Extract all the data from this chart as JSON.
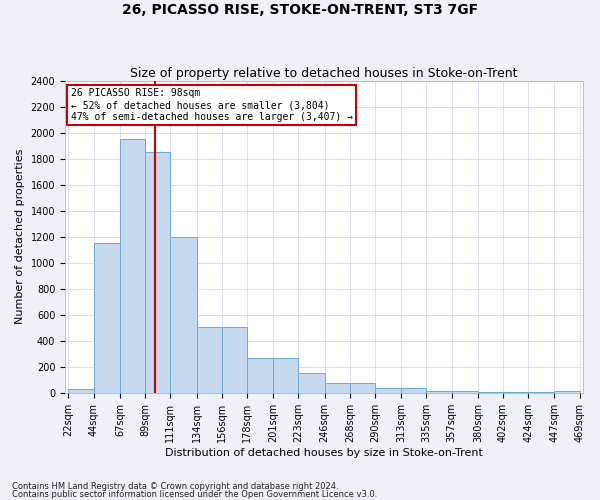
{
  "title": "26, PICASSO RISE, STOKE-ON-TRENT, ST3 7GF",
  "subtitle": "Size of property relative to detached houses in Stoke-on-Trent",
  "xlabel": "Distribution of detached houses by size in Stoke-on-Trent",
  "ylabel": "Number of detached properties",
  "footnote1": "Contains HM Land Registry data © Crown copyright and database right 2024.",
  "footnote2": "Contains public sector information licensed under the Open Government Licence v3.0.",
  "bar_edges": [
    22,
    44,
    67,
    89,
    111,
    134,
    156,
    178,
    201,
    223,
    246,
    268,
    290,
    313,
    335,
    357,
    380,
    402,
    424,
    447,
    469
  ],
  "bar_heights": [
    30,
    1150,
    1950,
    1850,
    1200,
    510,
    510,
    270,
    270,
    155,
    75,
    75,
    40,
    40,
    15,
    15,
    5,
    5,
    5,
    15
  ],
  "bar_color": "#c5d8ee",
  "bar_edge_color": "#6aaad4",
  "vline_x": 98,
  "vline_color": "#cc0000",
  "annotation_text": "26 PICASSO RISE: 98sqm\n← 52% of detached houses are smaller (3,804)\n47% of semi-detached houses are larger (3,407) →",
  "annotation_box_color": "#cc0000",
  "ylim": [
    0,
    2400
  ],
  "yticks": [
    0,
    200,
    400,
    600,
    800,
    1000,
    1200,
    1400,
    1600,
    1800,
    2000,
    2200,
    2400
  ],
  "tick_labels": [
    "22sqm",
    "44sqm",
    "67sqm",
    "89sqm",
    "111sqm",
    "134sqm",
    "156sqm",
    "178sqm",
    "201sqm",
    "223sqm",
    "246sqm",
    "268sqm",
    "290sqm",
    "313sqm",
    "335sqm",
    "357sqm",
    "380sqm",
    "402sqm",
    "424sqm",
    "447sqm",
    "469sqm"
  ],
  "bg_color": "#eef2f8",
  "plot_bg_color": "#ffffff",
  "grid_color": "#c8d4e4",
  "title_fontsize": 10,
  "subtitle_fontsize": 9,
  "axis_label_fontsize": 8,
  "tick_fontsize": 7,
  "footnote_fontsize": 6
}
